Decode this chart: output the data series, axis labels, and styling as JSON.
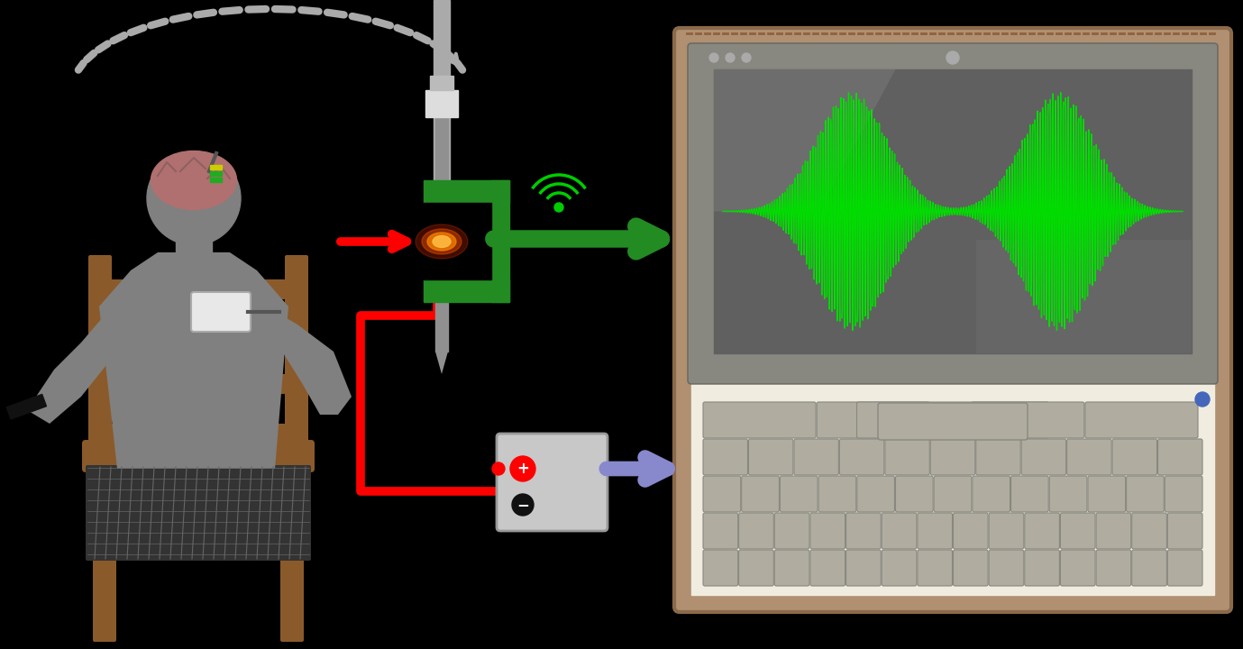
{
  "bg_color": "#000000",
  "fig_width": 13.79,
  "fig_height": 7.2,
  "dpi": 100,
  "person_color": "#808080",
  "brain_color": "#b07070",
  "chair_color": "#8B5A2B",
  "green_color": "#228B22",
  "red_color": "#ff0000",
  "blue_color": "#8888cc",
  "laptop_outer_color": "#a08060",
  "laptop_screen_color": "#7a7a7a",
  "laptop_display_color": "#606060",
  "laptop_kbd_color": "#e0ddd0",
  "key_color": "#b0ada0",
  "waveform_color": "#00dd00",
  "stim_box_color": "#c8c8c8",
  "probe_color": "#909090",
  "connector_color": "#cccccc",
  "signal_color": "#00cc00",
  "ipu_color": "#d0d0d0",
  "glare_color": "#888888"
}
